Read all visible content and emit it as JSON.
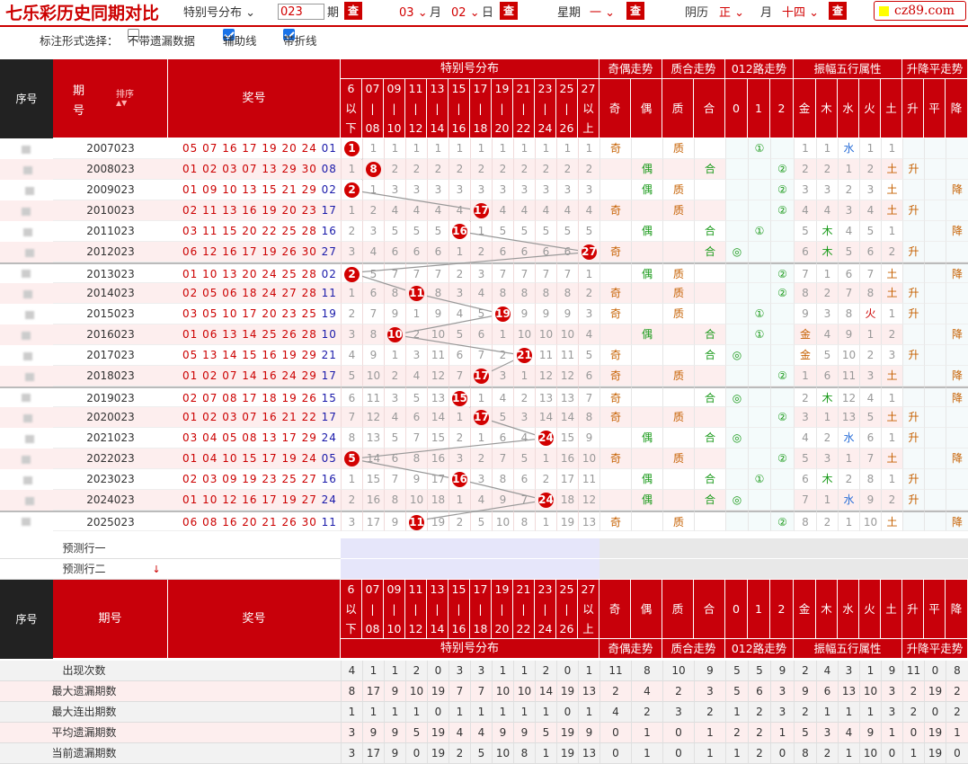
{
  "top": {
    "title": "七乐彩历史同期对比",
    "mode": "特别号分布",
    "issue_value": "023",
    "issue_unit": "期",
    "check": "查",
    "month": "03",
    "month_unit": "月",
    "day": "02",
    "day_unit": "日",
    "week_label": "星期",
    "week_value": "一",
    "lunar_label": "阴历",
    "lunar_month": "正",
    "lunar_day": "十四",
    "logo": "cz89.com"
  },
  "options": {
    "label": "标注形式选择：",
    "opt1": "不带遗漏数据",
    "opt2": "辅助线",
    "opt3": "带折线",
    "opt1_checked": false,
    "opt2_checked": true,
    "opt3_checked": true
  },
  "headers": {
    "seq": "序号",
    "issue_l1": "期",
    "issue_l2": "号",
    "sort": "排序",
    "prize": "奖号",
    "dist": "特别号分布",
    "oe": "奇偶走势",
    "pc": "质合走势",
    "r012": "012路走势",
    "amp5": "振幅五行属性",
    "ud": "升降平走势",
    "issue": "期号"
  },
  "buckets": [
    [
      "6",
      "以",
      "下"
    ],
    [
      "07",
      "|",
      "08"
    ],
    [
      "09",
      "|",
      "10"
    ],
    [
      "11",
      "|",
      "12"
    ],
    [
      "13",
      "|",
      "14"
    ],
    [
      "15",
      "|",
      "16"
    ],
    [
      "17",
      "|",
      "18"
    ],
    [
      "19",
      "|",
      "20"
    ],
    [
      "21",
      "|",
      "22"
    ],
    [
      "23",
      "|",
      "24"
    ],
    [
      "25",
      "|",
      "26"
    ],
    [
      "27",
      "以",
      "上"
    ]
  ],
  "tailcols": [
    "奇",
    "偶",
    "质",
    "合",
    "0",
    "1",
    "2",
    "金",
    "木",
    "水",
    "火",
    "土",
    "升",
    "平",
    "降"
  ],
  "rows": [
    {
      "issue": "2007023",
      "nums": [
        "05",
        "07",
        "16",
        "17",
        "19",
        "20",
        "24"
      ],
      "sp": "01",
      "hit": 0,
      "omit": [
        "1",
        "1",
        "1",
        "1",
        "1",
        "1",
        "1",
        "1",
        "1",
        "1",
        "1",
        "1"
      ],
      "tail": [
        "奇",
        "",
        "质",
        "",
        "",
        "①",
        "",
        "1",
        "1",
        "水",
        "1",
        "1",
        "",
        "",
        ""
      ]
    },
    {
      "issue": "2008023",
      "nums": [
        "01",
        "02",
        "03",
        "07",
        "13",
        "29",
        "30"
      ],
      "sp": "08",
      "hit": 1,
      "omit": [
        "1",
        "8",
        "2",
        "2",
        "2",
        "2",
        "2",
        "2",
        "2",
        "2",
        "2",
        "2"
      ],
      "tail": [
        "",
        "偶",
        "",
        "合",
        "",
        "",
        "②",
        "2",
        "2",
        "1",
        "2",
        "土",
        "升",
        "",
        ""
      ]
    },
    {
      "issue": "2009023",
      "nums": [
        "01",
        "09",
        "10",
        "13",
        "15",
        "21",
        "29"
      ],
      "sp": "02",
      "hit": 0,
      "omit": [
        "2",
        "1",
        "3",
        "3",
        "3",
        "3",
        "3",
        "3",
        "3",
        "3",
        "3",
        "3"
      ],
      "tail": [
        "",
        "偶",
        "质",
        "",
        "",
        "",
        "②",
        "3",
        "3",
        "2",
        "3",
        "土",
        "",
        "",
        "降"
      ]
    },
    {
      "issue": "2010023",
      "nums": [
        "02",
        "11",
        "13",
        "16",
        "19",
        "20",
        "23"
      ],
      "sp": "17",
      "hit": 6,
      "omit": [
        "1",
        "2",
        "4",
        "4",
        "4",
        "4",
        "17",
        "4",
        "4",
        "4",
        "4",
        "4"
      ],
      "tail": [
        "奇",
        "",
        "质",
        "",
        "",
        "",
        "②",
        "4",
        "4",
        "3",
        "4",
        "土",
        "升",
        "",
        ""
      ]
    },
    {
      "issue": "2011023",
      "nums": [
        "03",
        "11",
        "15",
        "20",
        "22",
        "25",
        "28"
      ],
      "sp": "16",
      "hit": 5,
      "omit": [
        "2",
        "3",
        "5",
        "5",
        "5",
        "16",
        "1",
        "5",
        "5",
        "5",
        "5",
        "5"
      ],
      "tail": [
        "",
        "偶",
        "",
        "合",
        "",
        "①",
        "",
        "5",
        "木",
        "4",
        "5",
        "1",
        "",
        "",
        "降"
      ]
    },
    {
      "issue": "2012023",
      "nums": [
        "06",
        "12",
        "16",
        "17",
        "19",
        "26",
        "30"
      ],
      "sp": "27",
      "hit": 11,
      "omit": [
        "3",
        "4",
        "6",
        "6",
        "6",
        "1",
        "2",
        "6",
        "6",
        "6",
        "6",
        "27"
      ],
      "tail": [
        "奇",
        "",
        "",
        "合",
        "◎",
        "",
        "",
        "6",
        "木",
        "5",
        "6",
        "2",
        "升",
        "",
        ""
      ]
    },
    {
      "issue": "2013023",
      "nums": [
        "01",
        "10",
        "13",
        "20",
        "24",
        "25",
        "28"
      ],
      "sp": "02",
      "hit": 0,
      "omit": [
        "2",
        "5",
        "7",
        "7",
        "7",
        "2",
        "3",
        "7",
        "7",
        "7",
        "7",
        "1"
      ],
      "tail": [
        "",
        "偶",
        "质",
        "",
        "",
        "",
        "②",
        "7",
        "1",
        "6",
        "7",
        "土",
        "",
        "",
        "降"
      ]
    },
    {
      "issue": "2014023",
      "nums": [
        "02",
        "05",
        "06",
        "18",
        "24",
        "27",
        "28"
      ],
      "sp": "11",
      "hit": 3,
      "omit": [
        "1",
        "6",
        "8",
        "11",
        "8",
        "3",
        "4",
        "8",
        "8",
        "8",
        "8",
        "2"
      ],
      "tail": [
        "奇",
        "",
        "质",
        "",
        "",
        "",
        "②",
        "8",
        "2",
        "7",
        "8",
        "土",
        "升",
        "",
        ""
      ]
    },
    {
      "issue": "2015023",
      "nums": [
        "03",
        "05",
        "10",
        "17",
        "20",
        "23",
        "25"
      ],
      "sp": "19",
      "hit": 7,
      "omit": [
        "2",
        "7",
        "9",
        "1",
        "9",
        "4",
        "5",
        "19",
        "9",
        "9",
        "9",
        "3"
      ],
      "tail": [
        "奇",
        "",
        "质",
        "",
        "",
        "①",
        "",
        "9",
        "3",
        "8",
        "火",
        "1",
        "升",
        "",
        ""
      ]
    },
    {
      "issue": "2016023",
      "nums": [
        "01",
        "06",
        "13",
        "14",
        "25",
        "26",
        "28"
      ],
      "sp": "10",
      "hit": 2,
      "omit": [
        "3",
        "8",
        "10",
        "2",
        "10",
        "5",
        "6",
        "1",
        "10",
        "10",
        "10",
        "4"
      ],
      "tail": [
        "",
        "偶",
        "",
        "合",
        "",
        "①",
        "",
        "金",
        "4",
        "9",
        "1",
        "2",
        "",
        "",
        "降"
      ]
    },
    {
      "issue": "2017023",
      "nums": [
        "05",
        "13",
        "14",
        "15",
        "16",
        "19",
        "29"
      ],
      "sp": "21",
      "hit": 8,
      "omit": [
        "4",
        "9",
        "1",
        "3",
        "11",
        "6",
        "7",
        "2",
        "21",
        "11",
        "11",
        "5"
      ],
      "tail": [
        "奇",
        "",
        "",
        "合",
        "◎",
        "",
        "",
        "金",
        "5",
        "10",
        "2",
        "3",
        "升",
        "",
        ""
      ]
    },
    {
      "issue": "2018023",
      "nums": [
        "01",
        "02",
        "07",
        "14",
        "16",
        "24",
        "29"
      ],
      "sp": "17",
      "hit": 6,
      "omit": [
        "5",
        "10",
        "2",
        "4",
        "12",
        "7",
        "17",
        "3",
        "1",
        "12",
        "12",
        "6"
      ],
      "tail": [
        "奇",
        "",
        "质",
        "",
        "",
        "",
        "②",
        "1",
        "6",
        "11",
        "3",
        "土",
        "",
        "",
        "降"
      ]
    },
    {
      "issue": "2019023",
      "nums": [
        "02",
        "07",
        "08",
        "17",
        "18",
        "19",
        "26"
      ],
      "sp": "15",
      "hit": 5,
      "omit": [
        "6",
        "11",
        "3",
        "5",
        "13",
        "15",
        "1",
        "4",
        "2",
        "13",
        "13",
        "7"
      ],
      "tail": [
        "奇",
        "",
        "",
        "合",
        "◎",
        "",
        "",
        "2",
        "木",
        "12",
        "4",
        "1",
        "",
        "",
        "降"
      ]
    },
    {
      "issue": "2020023",
      "nums": [
        "01",
        "02",
        "03",
        "07",
        "16",
        "21",
        "22"
      ],
      "sp": "17",
      "hit": 6,
      "omit": [
        "7",
        "12",
        "4",
        "6",
        "14",
        "1",
        "17",
        "5",
        "3",
        "14",
        "14",
        "8"
      ],
      "tail": [
        "奇",
        "",
        "质",
        "",
        "",
        "",
        "②",
        "3",
        "1",
        "13",
        "5",
        "土",
        "升",
        "",
        ""
      ]
    },
    {
      "issue": "2021023",
      "nums": [
        "03",
        "04",
        "05",
        "08",
        "13",
        "17",
        "29"
      ],
      "sp": "24",
      "hit": 9,
      "omit": [
        "8",
        "13",
        "5",
        "7",
        "15",
        "2",
        "1",
        "6",
        "4",
        "24",
        "15",
        "9"
      ],
      "tail": [
        "",
        "偶",
        "",
        "合",
        "◎",
        "",
        "",
        "4",
        "2",
        "水",
        "6",
        "1",
        "升",
        "",
        ""
      ]
    },
    {
      "issue": "2022023",
      "nums": [
        "01",
        "04",
        "10",
        "15",
        "17",
        "19",
        "24"
      ],
      "sp": "05",
      "hit": 0,
      "omit": [
        "5",
        "14",
        "6",
        "8",
        "16",
        "3",
        "2",
        "7",
        "5",
        "1",
        "16",
        "10"
      ],
      "tail": [
        "奇",
        "",
        "质",
        "",
        "",
        "",
        "②",
        "5",
        "3",
        "1",
        "7",
        "土",
        "",
        "",
        "降"
      ]
    },
    {
      "issue": "2023023",
      "nums": [
        "02",
        "03",
        "09",
        "19",
        "23",
        "25",
        "27"
      ],
      "sp": "16",
      "hit": 5,
      "omit": [
        "1",
        "15",
        "7",
        "9",
        "17",
        "16",
        "3",
        "8",
        "6",
        "2",
        "17",
        "11"
      ],
      "tail": [
        "",
        "偶",
        "",
        "合",
        "",
        "①",
        "",
        "6",
        "木",
        "2",
        "8",
        "1",
        "升",
        "",
        ""
      ]
    },
    {
      "issue": "2024023",
      "nums": [
        "01",
        "10",
        "12",
        "16",
        "17",
        "19",
        "27"
      ],
      "sp": "24",
      "hit": 9,
      "omit": [
        "2",
        "16",
        "8",
        "10",
        "18",
        "1",
        "4",
        "9",
        "7",
        "24",
        "18",
        "12"
      ],
      "tail": [
        "",
        "偶",
        "",
        "合",
        "◎",
        "",
        "",
        "7",
        "1",
        "水",
        "9",
        "2",
        "升",
        "",
        ""
      ]
    },
    {
      "issue": "2025023",
      "nums": [
        "06",
        "08",
        "16",
        "20",
        "21",
        "26",
        "30"
      ],
      "sp": "11",
      "hit": 3,
      "omit": [
        "3",
        "17",
        "9",
        "11",
        "19",
        "2",
        "5",
        "10",
        "8",
        "1",
        "19",
        "13"
      ],
      "tail": [
        "奇",
        "",
        "质",
        "",
        "",
        "",
        "②",
        "8",
        "2",
        "1",
        "10",
        "土",
        "",
        "",
        "降"
      ]
    }
  ],
  "predict": [
    "预测行一",
    "预测行二"
  ],
  "stats": [
    {
      "label": "出现次数",
      "vals": [
        "4",
        "1",
        "1",
        "2",
        "0",
        "3",
        "3",
        "1",
        "1",
        "2",
        "0",
        "1",
        "11",
        "8",
        "10",
        "9",
        "5",
        "5",
        "9",
        "2",
        "4",
        "3",
        "1",
        "9",
        "11",
        "0",
        "8"
      ]
    },
    {
      "label": "最大遗漏期数",
      "vals": [
        "8",
        "17",
        "9",
        "10",
        "19",
        "7",
        "7",
        "10",
        "10",
        "14",
        "19",
        "13",
        "2",
        "4",
        "2",
        "3",
        "5",
        "6",
        "3",
        "9",
        "6",
        "13",
        "10",
        "3",
        "2",
        "19",
        "2"
      ]
    },
    {
      "label": "最大连出期数",
      "vals": [
        "1",
        "1",
        "1",
        "1",
        "0",
        "1",
        "1",
        "1",
        "1",
        "1",
        "0",
        "1",
        "4",
        "2",
        "3",
        "2",
        "1",
        "2",
        "3",
        "2",
        "1",
        "1",
        "1",
        "3",
        "2",
        "0",
        "2"
      ]
    },
    {
      "label": "平均遗漏期数",
      "vals": [
        "3",
        "9",
        "9",
        "5",
        "19",
        "4",
        "4",
        "9",
        "9",
        "5",
        "19",
        "9",
        "0",
        "1",
        "0",
        "1",
        "2",
        "2",
        "1",
        "5",
        "3",
        "4",
        "9",
        "1",
        "0",
        "19",
        "1"
      ]
    },
    {
      "label": "当前遗漏期数",
      "vals": [
        "3",
        "17",
        "9",
        "0",
        "19",
        "2",
        "5",
        "10",
        "8",
        "1",
        "19",
        "13",
        "0",
        "1",
        "0",
        "1",
        "1",
        "2",
        "0",
        "8",
        "2",
        "1",
        "10",
        "0",
        "1",
        "19",
        "0"
      ]
    }
  ]
}
